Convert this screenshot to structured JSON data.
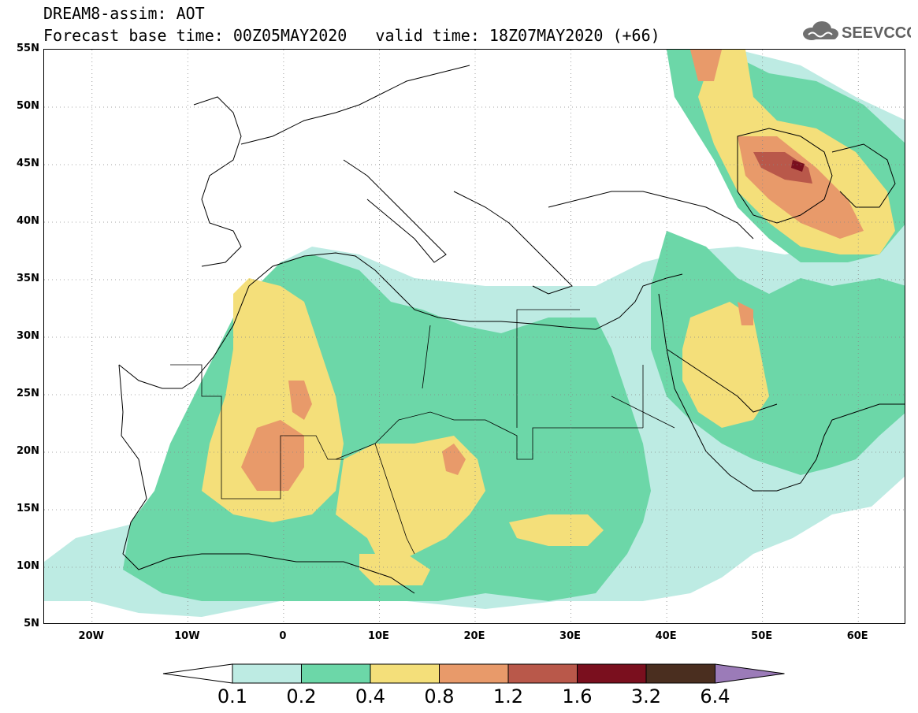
{
  "title": {
    "line1": "DREAM8-assim: AOT",
    "line2": "Forecast base time: 00Z05MAY2020   valid time: 18Z07MAY2020 (+66)"
  },
  "logo": {
    "text": "SEEVCCC",
    "icon": "cloud-icon"
  },
  "map": {
    "lat_labels": [
      "55N",
      "50N",
      "45N",
      "40N",
      "35N",
      "30N",
      "25N",
      "20N",
      "15N",
      "10N",
      "5N"
    ],
    "lon_labels": [
      "20W",
      "10W",
      "0",
      "10E",
      "20E",
      "30E",
      "40E",
      "50E",
      "60E"
    ],
    "lon_range": [
      -25,
      65
    ],
    "lat_range": [
      5,
      55
    ],
    "grid": "dotted"
  },
  "colorbar": {
    "labels": [
      "0.1",
      "0.2",
      "0.4",
      "0.8",
      "1.2",
      "1.6",
      "3.2",
      "6.4"
    ],
    "colors": [
      "#ffffff",
      "#bdebe3",
      "#6cd7a8",
      "#f4df7a",
      "#e89a6a",
      "#b9584a",
      "#7a0f1e",
      "#4a2e1f",
      "#9b7bb8"
    ]
  }
}
